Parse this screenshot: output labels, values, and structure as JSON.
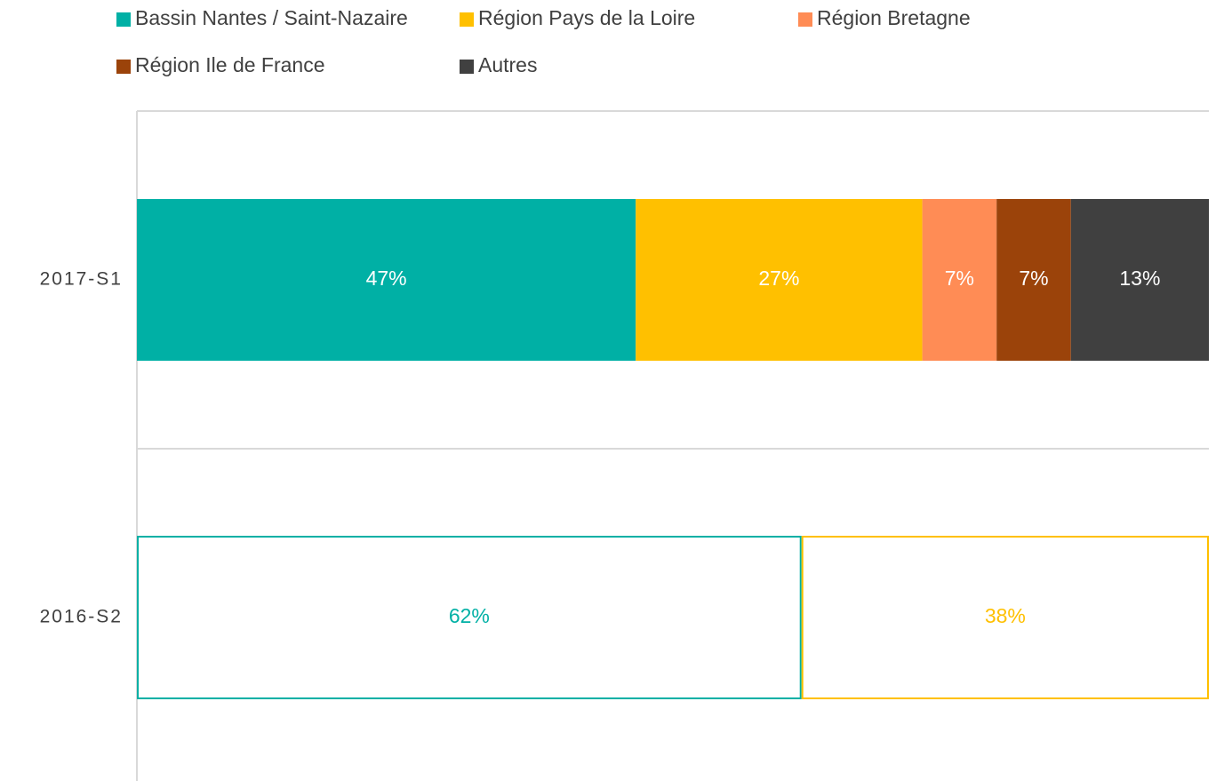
{
  "chart_data": {
    "type": "stacked_bar_percent",
    "categories": [
      "2017-S1",
      "2016-S2"
    ],
    "bar_style": [
      "solid",
      "outline"
    ],
    "series": [
      {
        "name": "Bassin Nantes / Saint-Nazaire",
        "color": "#00b0a5",
        "values": [
          47,
          62
        ],
        "value_labels": [
          "47%",
          "62%"
        ]
      },
      {
        "name": "Région Pays de la Loire",
        "color": "#ffc000",
        "values": [
          27,
          38
        ],
        "value_labels": [
          "27%",
          "38%"
        ]
      },
      {
        "name": "Région Bretagne",
        "color": "#ff8c55",
        "values": [
          7,
          null
        ],
        "value_labels": [
          "7%",
          null
        ]
      },
      {
        "name": "Région Ile de France",
        "color": "#9b430a",
        "values": [
          7,
          null
        ],
        "value_labels": [
          "7%",
          null
        ]
      },
      {
        "name": "Autres",
        "color": "#404040",
        "values": [
          13,
          null
        ],
        "value_labels": [
          "13%",
          null
        ]
      }
    ]
  }
}
